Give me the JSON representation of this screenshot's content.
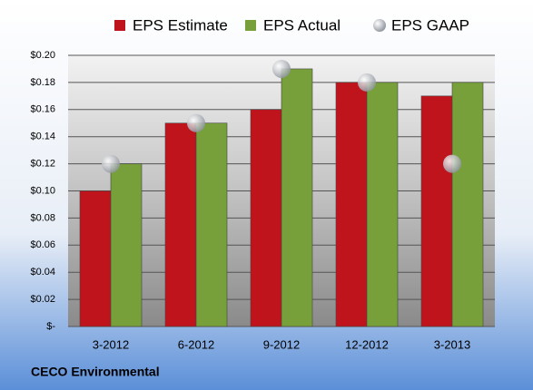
{
  "chart_data": {
    "type": "bar",
    "categories": [
      "3-2012",
      "6-2012",
      "9-2012",
      "12-2012",
      "3-2013"
    ],
    "series": [
      {
        "name": "EPS Estimate",
        "color": "#c0141c",
        "values": [
          0.1,
          0.15,
          0.16,
          0.18,
          0.17
        ]
      },
      {
        "name": "EPS Actual",
        "color": "#77a03a",
        "values": [
          0.12,
          0.15,
          0.19,
          0.18,
          0.18
        ]
      },
      {
        "name": "EPS GAAP",
        "color": "#b8bcc4",
        "type": "scatter",
        "values": [
          0.12,
          0.15,
          0.19,
          0.18,
          0.12
        ]
      }
    ],
    "ylim": [
      0,
      0.2
    ],
    "yticks": [
      {
        "value": 0,
        "label": "$-"
      },
      {
        "value": 0.02,
        "label": "$0.02"
      },
      {
        "value": 0.04,
        "label": "$0.04"
      },
      {
        "value": 0.06,
        "label": "$0.06"
      },
      {
        "value": 0.08,
        "label": "$0.08"
      },
      {
        "value": 0.1,
        "label": "$0.10"
      },
      {
        "value": 0.12,
        "label": "$0.12"
      },
      {
        "value": 0.14,
        "label": "$0.14"
      },
      {
        "value": 0.16,
        "label": "$0.16"
      },
      {
        "value": 0.18,
        "label": "$0.18"
      },
      {
        "value": 0.2,
        "label": "$0.20"
      }
    ],
    "grid": true,
    "legend": "top",
    "footer": "CECO Environmental"
  }
}
